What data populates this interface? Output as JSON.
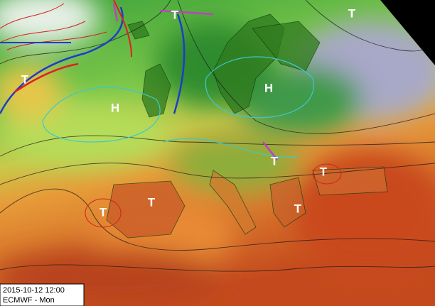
{
  "timestamp": "2015-10-12 12:00",
  "model": "ECMWF - Mon",
  "pressure_centers": [
    {
      "label": "T"
    },
    {
      "label": "T"
    },
    {
      "label": "T"
    },
    {
      "label": "H"
    },
    {
      "label": "H"
    },
    {
      "label": "T"
    },
    {
      "label": "T"
    },
    {
      "label": "T"
    },
    {
      "label": "T"
    },
    {
      "label": "T"
    }
  ]
}
